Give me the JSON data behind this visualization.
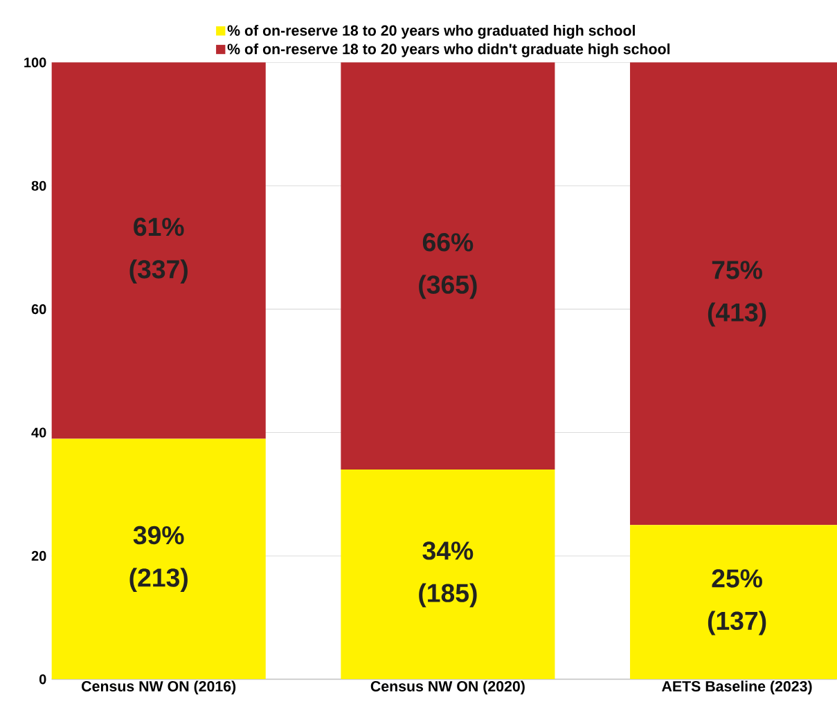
{
  "chart_data": {
    "type": "bar",
    "stacked": true,
    "categories": [
      "Census NW ON (2016)",
      "Census NW ON (2020)",
      "AETS Baseline (2023)"
    ],
    "series": [
      {
        "name": "% of on-reserve 18 to 20 years who graduated high school",
        "color": "#fff200",
        "values": [
          39,
          34,
          25
        ],
        "value_labels": [
          "39% (213)",
          "34% (185)",
          "25% (137)"
        ]
      },
      {
        "name": "% of on-reserve 18 to 20 years who didn't graduate high school",
        "color": "#b8292f",
        "values": [
          61,
          66,
          75
        ],
        "value_labels": [
          "61% (337)",
          "66% (365)",
          "75% (413)"
        ]
      }
    ],
    "ylim": [
      0,
      100
    ],
    "yticks": [
      0,
      20,
      40,
      60,
      80,
      100
    ],
    "grid": "y",
    "legend": "top"
  }
}
